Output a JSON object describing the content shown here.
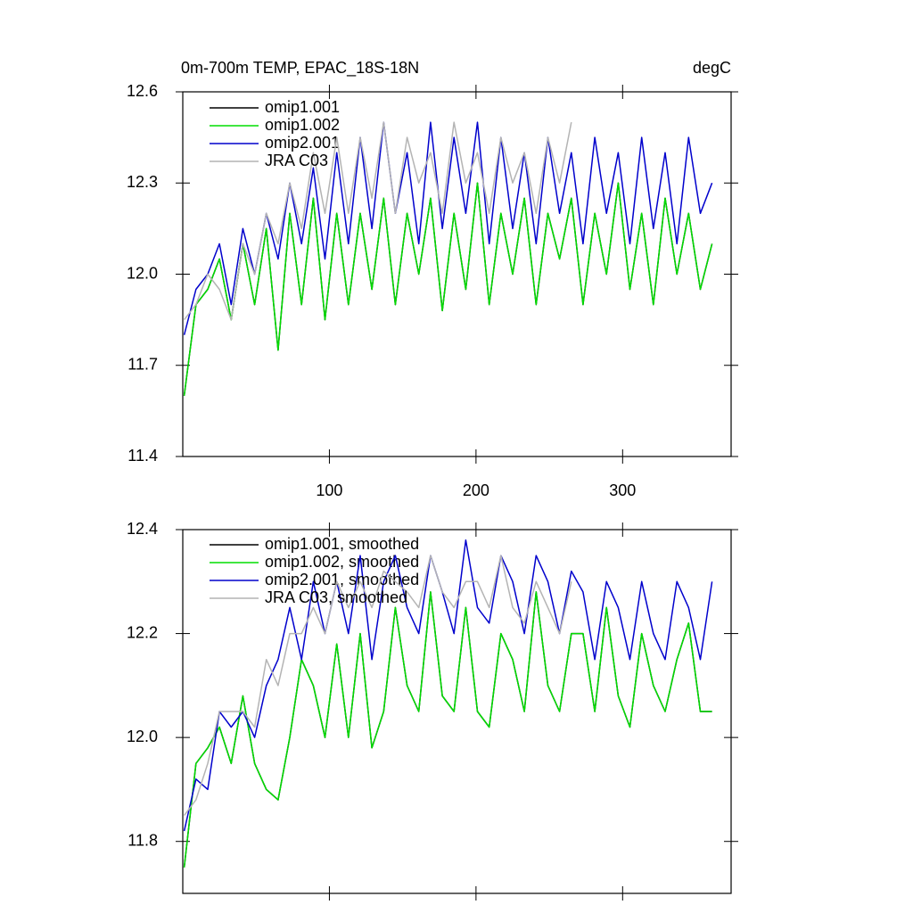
{
  "chart_data": [
    {
      "type": "line",
      "title": "0m-700m TEMP, EPAC_18S-18N",
      "units": "degC",
      "x": [
        1,
        9,
        17,
        25,
        33,
        41,
        49,
        57,
        65,
        73,
        81,
        89,
        97,
        105,
        113,
        121,
        129,
        137,
        145,
        153,
        161,
        169,
        177,
        185,
        193,
        201,
        209,
        217,
        225,
        233,
        241,
        249,
        257,
        265,
        273,
        281,
        289,
        297,
        305,
        313,
        321,
        329,
        337,
        345,
        353,
        361
      ],
      "xlim": [
        0,
        374
      ],
      "xticks": [
        100,
        200,
        300
      ],
      "ylim": [
        11.4,
        12.6
      ],
      "yticks": [
        11.4,
        11.7,
        {
          "value": 12,
          "label": "12.0"
        },
        12.3,
        12.6
      ],
      "series": [
        {
          "name": "omip1.001",
          "color": "#000000",
          "values": [
            11.6,
            11.9,
            11.95,
            12.05,
            11.85,
            12.1,
            11.9,
            12.15,
            11.75,
            12.2,
            11.9,
            12.25,
            11.85,
            12.2,
            11.9,
            12.2,
            11.95,
            12.25,
            11.9,
            12.2,
            12.0,
            12.25,
            11.88,
            12.2,
            11.95,
            12.3,
            11.9,
            12.2,
            12.0,
            12.25,
            11.9,
            12.2,
            12.05,
            12.25,
            11.9,
            12.2,
            12.0,
            12.3,
            11.95,
            12.2,
            11.9,
            12.25,
            12.0,
            12.2,
            11.95,
            12.1
          ]
        },
        {
          "name": "omip1.002",
          "color": "#00dd00",
          "values": [
            11.6,
            11.9,
            11.95,
            12.05,
            11.85,
            12.1,
            11.9,
            12.15,
            11.75,
            12.2,
            11.9,
            12.25,
            11.85,
            12.2,
            11.9,
            12.2,
            11.95,
            12.25,
            11.9,
            12.2,
            12.0,
            12.25,
            11.88,
            12.2,
            11.95,
            12.3,
            11.9,
            12.2,
            12.0,
            12.25,
            11.9,
            12.2,
            12.05,
            12.25,
            11.9,
            12.2,
            12.0,
            12.3,
            11.95,
            12.2,
            11.9,
            12.25,
            12.0,
            12.2,
            11.95,
            12.1
          ]
        },
        {
          "name": "omip2.001",
          "color": "#0000cc",
          "values": [
            11.8,
            11.95,
            12.0,
            12.1,
            11.9,
            12.15,
            12.0,
            12.2,
            12.05,
            12.3,
            12.1,
            12.35,
            12.05,
            12.4,
            12.1,
            12.45,
            12.15,
            12.5,
            12.2,
            12.4,
            12.1,
            12.5,
            12.15,
            12.45,
            12.2,
            12.5,
            12.1,
            12.45,
            12.15,
            12.4,
            12.1,
            12.45,
            12.2,
            12.4,
            12.1,
            12.45,
            12.2,
            12.4,
            12.1,
            12.45,
            12.15,
            12.4,
            12.1,
            12.45,
            12.2,
            12.3
          ]
        },
        {
          "name": "JRA C03",
          "color": "#b4b4b4",
          "values": [
            11.85,
            11.9,
            12.0,
            11.95,
            11.85,
            12.1,
            12.0,
            12.2,
            12.1,
            12.3,
            12.15,
            12.4,
            12.2,
            12.45,
            12.2,
            12.45,
            12.25,
            12.5,
            12.2,
            12.45,
            12.3,
            12.4,
            12.2,
            12.5,
            12.3,
            12.4,
            12.2,
            12.45,
            12.3,
            12.4,
            12.2,
            12.45,
            12.3,
            12.5,
            null,
            null,
            null,
            null,
            null,
            null,
            null,
            null,
            null,
            null,
            null,
            null
          ]
        }
      ]
    },
    {
      "type": "line",
      "x": [
        1,
        9,
        17,
        25,
        33,
        41,
        49,
        57,
        65,
        73,
        81,
        89,
        97,
        105,
        113,
        121,
        129,
        137,
        145,
        153,
        161,
        169,
        177,
        185,
        193,
        201,
        209,
        217,
        225,
        233,
        241,
        249,
        257,
        265,
        273,
        281,
        289,
        297,
        305,
        313,
        321,
        329,
        337,
        345,
        353,
        361
      ],
      "xlim": [
        0,
        374
      ],
      "xticks": [
        100,
        200,
        300
      ],
      "ylim": [
        11.7,
        12.4
      ],
      "yticks": [
        11.8,
        {
          "value": 12,
          "label": "12.0"
        },
        12.2,
        12.4
      ],
      "series": [
        {
          "name": "omip1.001, smoothed",
          "color": "#000000",
          "values": [
            11.75,
            11.95,
            11.98,
            12.02,
            11.95,
            12.08,
            11.95,
            11.9,
            11.88,
            12.0,
            12.15,
            12.1,
            12.0,
            12.18,
            12.0,
            12.2,
            11.98,
            12.05,
            12.25,
            12.1,
            12.05,
            12.28,
            12.08,
            12.05,
            12.25,
            12.05,
            12.02,
            12.2,
            12.15,
            12.05,
            12.28,
            12.1,
            12.05,
            12.2,
            12.2,
            12.05,
            12.25,
            12.08,
            12.02,
            12.2,
            12.1,
            12.05,
            12.15,
            12.22,
            12.05,
            12.05
          ]
        },
        {
          "name": "omip1.002, smoothed",
          "color": "#00dd00",
          "values": [
            11.75,
            11.95,
            11.98,
            12.02,
            11.95,
            12.08,
            11.95,
            11.9,
            11.88,
            12.0,
            12.15,
            12.1,
            12.0,
            12.18,
            12.0,
            12.2,
            11.98,
            12.05,
            12.25,
            12.1,
            12.05,
            12.28,
            12.08,
            12.05,
            12.25,
            12.05,
            12.02,
            12.2,
            12.15,
            12.05,
            12.28,
            12.1,
            12.05,
            12.2,
            12.2,
            12.05,
            12.25,
            12.08,
            12.02,
            12.2,
            12.1,
            12.05,
            12.15,
            12.22,
            12.05,
            12.05
          ]
        },
        {
          "name": "omip2.001, smoothed",
          "color": "#0000cc",
          "values": [
            11.82,
            11.92,
            11.9,
            12.05,
            12.02,
            12.05,
            12.0,
            12.1,
            12.15,
            12.25,
            12.15,
            12.3,
            12.2,
            12.3,
            12.2,
            12.35,
            12.15,
            12.3,
            12.35,
            12.25,
            12.2,
            12.35,
            12.28,
            12.2,
            12.38,
            12.25,
            12.22,
            12.35,
            12.3,
            12.2,
            12.35,
            12.3,
            12.2,
            12.32,
            12.28,
            12.15,
            12.3,
            12.25,
            12.15,
            12.3,
            12.2,
            12.15,
            12.3,
            12.25,
            12.15,
            12.3
          ]
        },
        {
          "name": "JRA C03, smoothed",
          "color": "#b4b4b4",
          "values": [
            11.85,
            11.88,
            11.95,
            12.05,
            12.05,
            12.05,
            12.02,
            12.15,
            12.1,
            12.2,
            12.2,
            12.25,
            12.2,
            12.3,
            12.25,
            12.3,
            12.25,
            12.32,
            12.3,
            12.28,
            12.25,
            12.35,
            12.28,
            12.25,
            12.3,
            12.3,
            12.25,
            12.35,
            12.25,
            12.22,
            12.3,
            12.25,
            12.2,
            12.3,
            null,
            null,
            null,
            null,
            null,
            null,
            null,
            null,
            null,
            null,
            null,
            null
          ]
        }
      ]
    }
  ]
}
